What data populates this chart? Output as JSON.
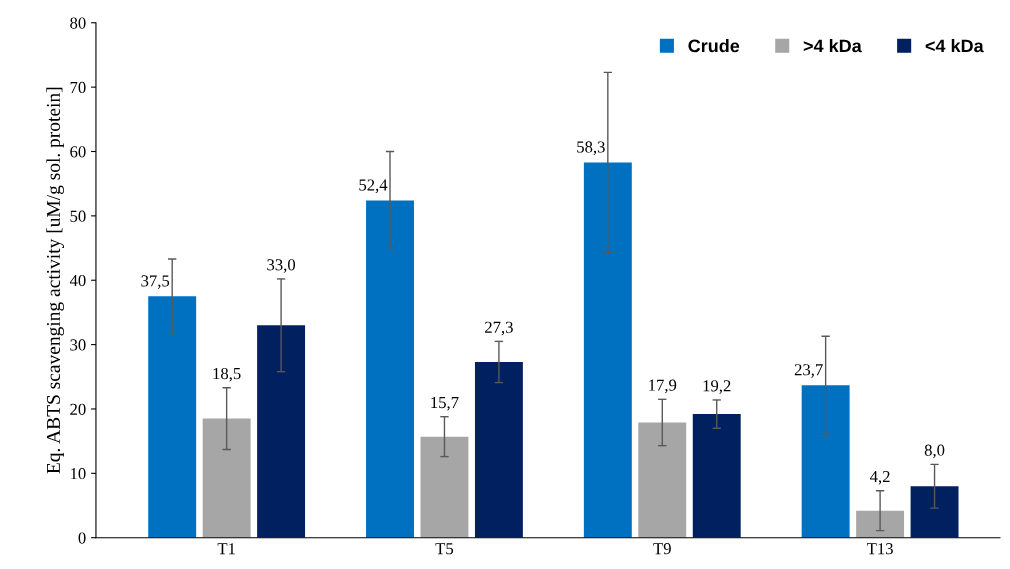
{
  "chart_data": {
    "type": "bar",
    "ylabel": "Eq. ABTS scavenging activity [uM/g sol. protein]",
    "categories": [
      "T1",
      "T5",
      "T9",
      "T13"
    ],
    "series": [
      {
        "name": "Crude",
        "color": "#0070c0",
        "values": [
          37.5,
          52.4,
          58.3,
          23.7
        ],
        "errors": [
          5.8,
          7.6,
          14.0,
          7.6
        ],
        "value_labels": [
          "37,5",
          "52,4",
          "58,3",
          "23,7"
        ]
      },
      {
        "name": ">4 kDa",
        "color": "#a6a6a6",
        "values": [
          18.5,
          15.7,
          17.9,
          4.2
        ],
        "errors": [
          4.8,
          3.1,
          3.6,
          3.1
        ],
        "value_labels": [
          "18,5",
          "15,7",
          "17,9",
          "4,2"
        ]
      },
      {
        "name": "<4 kDa",
        "color": "#002060",
        "values": [
          33.0,
          27.3,
          19.2,
          8.0
        ],
        "errors": [
          7.2,
          3.2,
          2.2,
          3.4
        ],
        "value_labels": [
          "33,0",
          "27,3",
          "19,2",
          "8,0"
        ]
      }
    ],
    "ylim": [
      0,
      80
    ],
    "yticks": [
      0,
      10,
      20,
      30,
      40,
      50,
      60,
      70,
      80
    ],
    "grid": false,
    "legend": "top right"
  }
}
